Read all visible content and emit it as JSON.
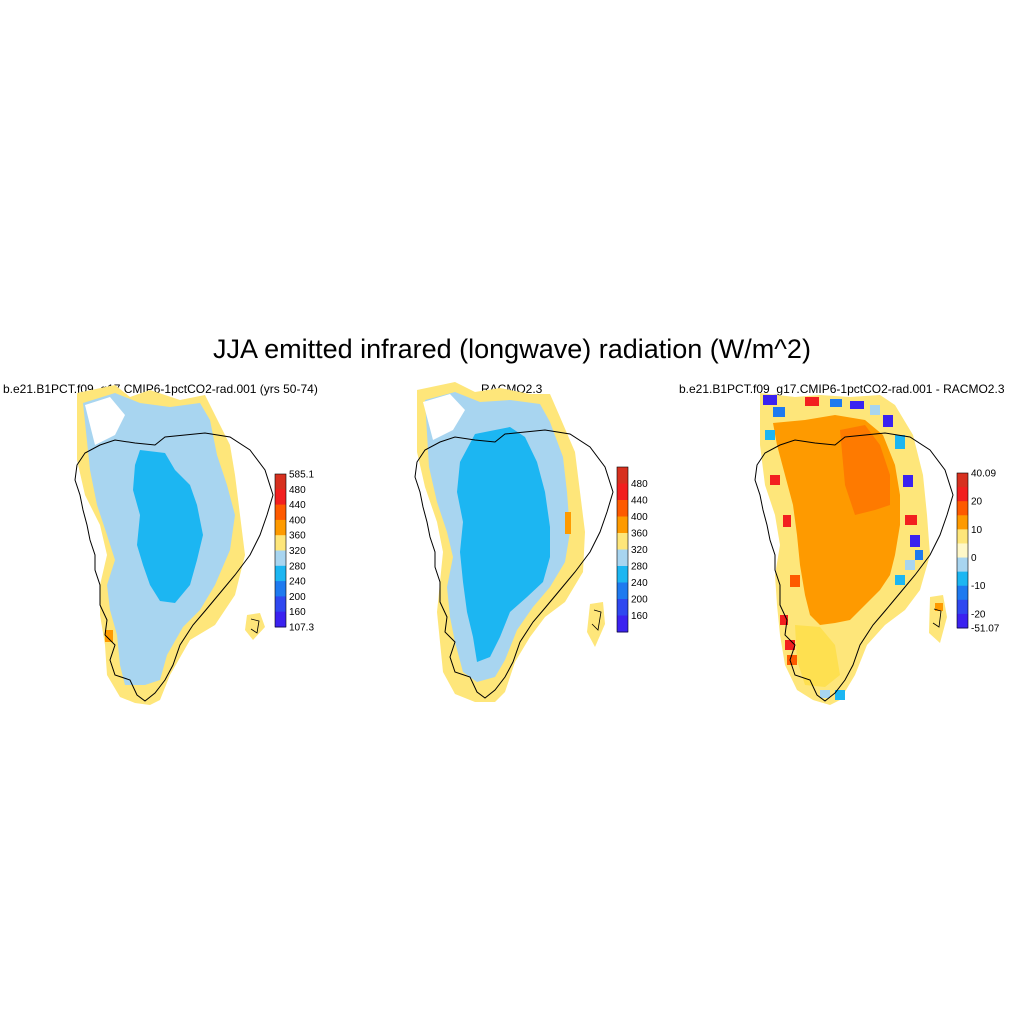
{
  "title": "JJA emitted infrared (longwave) radiation (W/m^2)",
  "panels": [
    {
      "title": "b.e21.B1PCT.f09_g17.CMIP6-1pctCO2-rad.001 (yrs 50-74)",
      "colorbar": {
        "labels": [
          "585.1",
          "480",
          "440",
          "400",
          "360",
          "320",
          "280",
          "240",
          "200",
          "160",
          "107.3"
        ],
        "colors": [
          "#d7301f",
          "#f21f1f",
          "#fe5a00",
          "#fe9a00",
          "#fee67a",
          "#a8d5f0",
          "#1cb6f2",
          "#1e7af0",
          "#2f48f0",
          "#3b22f0"
        ]
      }
    },
    {
      "title": "RACMO2.3",
      "colorbar": {
        "labels": [
          "480",
          "440",
          "400",
          "360",
          "320",
          "280",
          "240",
          "200",
          "160"
        ],
        "colors": [
          "#d7301f",
          "#f21f1f",
          "#fe5a00",
          "#fe9a00",
          "#fee67a",
          "#a8d5f0",
          "#1cb6f2",
          "#1e7af0",
          "#2f48f0",
          "#3b22f0"
        ]
      }
    },
    {
      "title": "b.e21.B1PCT.f09_g17.CMIP6-1pctCO2-rad.001 - RACMO2.3",
      "colorbar": {
        "labels": [
          "40.09",
          "20",
          "10",
          "0",
          "-10",
          "-20",
          "-51.07"
        ],
        "colors": [
          "#d7301f",
          "#f21f1f",
          "#fe5a00",
          "#fe9a00",
          "#fee67a",
          "#fff8c8",
          "#a8d5f0",
          "#1cb6f2",
          "#1e7af0",
          "#2f48f0",
          "#3b22f0"
        ]
      }
    }
  ]
}
